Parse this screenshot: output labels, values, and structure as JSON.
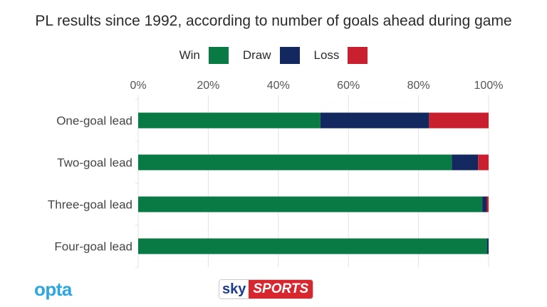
{
  "chart_data": {
    "type": "bar",
    "orientation": "horizontal",
    "stacked": true,
    "title": "PL results since 1992, according to number of goals ahead during game",
    "categories": [
      "One-goal lead",
      "Two-goal lead",
      "Three-goal lead",
      "Four-goal lead"
    ],
    "series": [
      {
        "name": "Win",
        "color": "#0a7a45",
        "values": [
          52,
          89.5,
          98.2,
          99.6
        ]
      },
      {
        "name": "Draw",
        "color": "#13285f",
        "values": [
          31,
          7.5,
          1.3,
          0.4
        ]
      },
      {
        "name": "Loss",
        "color": "#c8202f",
        "values": [
          17,
          3,
          0.5,
          0
        ]
      }
    ],
    "xlim": [
      0,
      100
    ],
    "xticks": [
      "0%",
      "20%",
      "40%",
      "60%",
      "80%",
      "100%"
    ],
    "xtick_values": [
      0,
      20,
      40,
      60,
      80,
      100
    ],
    "grid": true,
    "legend_position": "top-center"
  },
  "branding": {
    "opta": "opta",
    "sky": "sky",
    "sports": "SPORTS"
  }
}
